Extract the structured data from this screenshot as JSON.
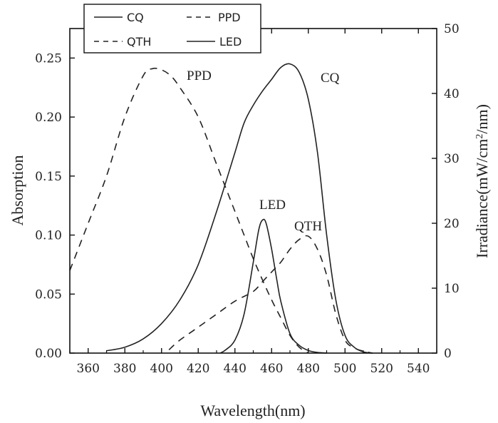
{
  "chart_data": {
    "type": "line",
    "title": "",
    "xlabel": "Wavelength(nm)",
    "ylabel": "Absorption",
    "y2label_main": "Irradiance(mW/cm",
    "y2label_sup": "2",
    "y2label_end": "/nm)",
    "xlim": [
      350,
      550
    ],
    "ylim": [
      0,
      0.275
    ],
    "y2lim": [
      0,
      50
    ],
    "x_ticks": [
      "360",
      "380",
      "400",
      "420",
      "440",
      "460",
      "480",
      "500",
      "520",
      "540"
    ],
    "y_ticks": [
      "0.00",
      "0.05",
      "0.10",
      "0.15",
      "0.20",
      "0.25"
    ],
    "y2_ticks": [
      "0",
      "10",
      "20",
      "30",
      "40",
      "50"
    ],
    "grid": false,
    "legend_placement": "top-left",
    "legend": [
      {
        "name": "CQ",
        "style": "solid"
      },
      {
        "name": "PPD",
        "style": "dashed"
      },
      {
        "name": "QTH",
        "style": "dashed"
      },
      {
        "name": "LED",
        "style": "solid"
      }
    ],
    "series": [
      {
        "name": "PPD",
        "axis": "left",
        "style": "dashed",
        "x": [
          350,
          360,
          370,
          380,
          390,
          395,
          400,
          405,
          410,
          420,
          430,
          440,
          445,
          450,
          455,
          460,
          465,
          470,
          475,
          480
        ],
        "y": [
          0.07,
          0.11,
          0.15,
          0.2,
          0.235,
          0.241,
          0.24,
          0.235,
          0.225,
          0.2,
          0.16,
          0.12,
          0.1,
          0.08,
          0.062,
          0.045,
          0.03,
          0.015,
          0.005,
          0.0
        ]
      },
      {
        "name": "CQ",
        "axis": "left",
        "style": "solid",
        "x": [
          370,
          380,
          390,
          400,
          410,
          420,
          430,
          440,
          445,
          450,
          455,
          460,
          465,
          470,
          475,
          480,
          485,
          490,
          495,
          500,
          505,
          510,
          515
        ],
        "y": [
          0.002,
          0.005,
          0.012,
          0.025,
          0.045,
          0.075,
          0.12,
          0.17,
          0.195,
          0.21,
          0.222,
          0.232,
          0.242,
          0.245,
          0.238,
          0.215,
          0.17,
          0.1,
          0.045,
          0.015,
          0.005,
          0.001,
          0.0
        ]
      },
      {
        "name": "QTH",
        "axis": "right",
        "style": "dashed",
        "x": [
          404,
          410,
          420,
          430,
          440,
          450,
          455,
          460,
          465,
          470,
          475,
          480,
          485,
          490,
          495,
          500,
          505,
          510,
          515
        ],
        "y": [
          0.5,
          2,
          4,
          6,
          8,
          9.5,
          11,
          12.5,
          14,
          16,
          17.5,
          18,
          16,
          12,
          6,
          2,
          0.8,
          0.3,
          0.0
        ]
      },
      {
        "name": "LED",
        "axis": "right",
        "style": "solid",
        "x": [
          432,
          435,
          440,
          445,
          450,
          453,
          455,
          457,
          460,
          463,
          465,
          470,
          475,
          480,
          485,
          490
        ],
        "y": [
          0.0,
          0.5,
          2,
          6,
          14,
          19,
          20.5,
          20,
          16,
          11,
          8,
          3,
          1.2,
          0.4,
          0.1,
          0.0
        ]
      }
    ]
  }
}
